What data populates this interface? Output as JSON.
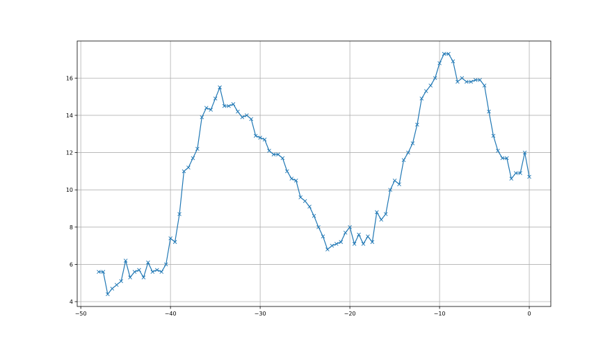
{
  "chart_data": {
    "type": "line",
    "title": "",
    "xlabel": "",
    "ylabel": "",
    "xlim": [
      -50.4,
      2.4
    ],
    "ylim": [
      3.74,
      17.99
    ],
    "xticks": [
      -50,
      -40,
      -30,
      -20,
      -10,
      0
    ],
    "yticks": [
      4,
      6,
      8,
      10,
      12,
      14,
      16
    ],
    "xtick_labels": [
      "−50",
      "−40",
      "−30",
      "−20",
      "−10",
      "0"
    ],
    "ytick_labels": [
      "4",
      "6",
      "8",
      "10",
      "12",
      "14",
      "16"
    ],
    "grid": true,
    "marker": "x",
    "color": "#1f77b4",
    "x_start": -48,
    "x_step": 0.5,
    "series": [
      {
        "values": [
          5.6,
          5.6,
          4.4,
          4.7,
          4.9,
          5.1,
          6.2,
          5.3,
          5.6,
          5.7,
          5.3,
          6.1,
          5.6,
          5.7,
          5.6,
          6.0,
          7.4,
          7.2,
          8.7,
          11.0,
          11.2,
          11.7,
          12.2,
          13.9,
          14.4,
          14.3,
          14.9,
          15.5,
          14.5,
          14.5,
          14.6,
          14.2,
          13.9,
          14.0,
          13.8,
          12.9,
          12.8,
          12.7,
          12.1,
          11.9,
          11.9,
          11.7,
          11.0,
          10.6,
          10.5,
          9.6,
          9.4,
          9.1,
          8.6,
          8.0,
          7.5,
          6.8,
          7.0,
          7.1,
          7.2,
          7.7,
          8.0,
          7.1,
          7.6,
          7.1,
          7.5,
          7.2,
          8.8,
          8.4,
          8.7,
          10.0,
          10.5,
          10.3,
          11.6,
          12.0,
          12.5,
          13.5,
          14.9,
          15.3,
          15.6,
          16.0,
          16.8,
          17.3,
          17.3,
          16.9,
          15.8,
          16.0,
          15.8,
          15.8,
          15.9,
          15.9,
          15.6,
          14.2,
          12.9,
          12.1,
          11.7,
          11.7,
          10.6,
          10.9,
          10.9,
          12.0,
          10.7
        ]
      }
    ]
  }
}
